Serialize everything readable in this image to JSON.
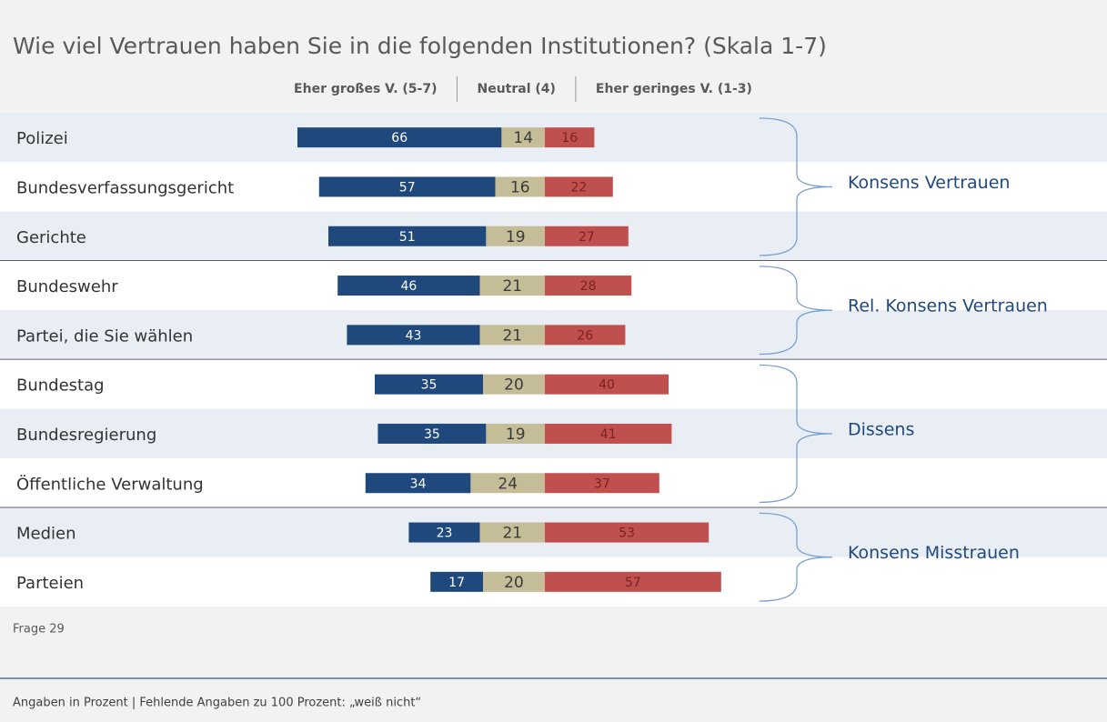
{
  "chart_data": {
    "type": "diverging-bar",
    "title": "Wie viel Vertrauen haben Sie in die folgenden Institutionen? (Skala 1-7)",
    "groups": [
      {
        "label": "Konsens Vertrauen",
        "categories": [
          "Polizei",
          "Bundesverfassungsgericht",
          "Gerichte"
        ]
      },
      {
        "label": "Rel. Konsens Vertrauen",
        "categories": [
          "Bundeswehr",
          "Partei, die Sie wählen"
        ]
      },
      {
        "label": "Dissens",
        "categories": [
          "Bundestag",
          "Bundesregierung",
          "Öffentliche Verwaltung"
        ]
      },
      {
        "label": "Konsens Misstrauen",
        "categories": [
          "Medien",
          "Parteien"
        ]
      }
    ],
    "series": [
      {
        "name": "Eher großes V. (5-7)",
        "color": "#1f497d",
        "values": [
          66,
          57,
          51,
          46,
          43,
          35,
          35,
          34,
          23,
          17
        ]
      },
      {
        "name": "Neutral (4)",
        "color": "#c4bd97",
        "values": [
          14,
          16,
          19,
          21,
          21,
          20,
          19,
          24,
          21,
          20
        ]
      },
      {
        "name": "Eher geringes V. (1-3)",
        "color": "#c0504d",
        "values": [
          16,
          22,
          27,
          28,
          26,
          40,
          41,
          37,
          53,
          57
        ]
      }
    ],
    "note": "Frage 29",
    "footer": "Angaben in Prozent | Fehlende Angaben zu 100 Prozent: „weiß nicht“"
  }
}
